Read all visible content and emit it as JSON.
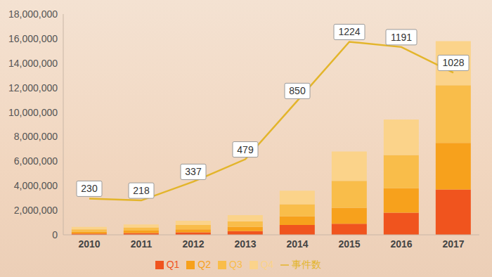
{
  "chart_data": {
    "type": "bar",
    "stacked": true,
    "categories": [
      "2010",
      "2011",
      "2012",
      "2013",
      "2014",
      "2015",
      "2016",
      "2017"
    ],
    "series": [
      {
        "name": "Q1",
        "type": "bar",
        "color": "#f0541e",
        "values": [
          100000,
          150000,
          200000,
          300000,
          800000,
          900000,
          1800000,
          3700000
        ]
      },
      {
        "name": "Q2",
        "type": "bar",
        "color": "#f7a11c",
        "values": [
          150000,
          200000,
          250000,
          350000,
          700000,
          1300000,
          2000000,
          3800000
        ]
      },
      {
        "name": "Q3",
        "type": "bar",
        "color": "#f9bd4a",
        "values": [
          200000,
          250000,
          350000,
          450000,
          1000000,
          2200000,
          2700000,
          4700000
        ]
      },
      {
        "name": "Q4",
        "type": "bar",
        "color": "#fbd38a",
        "values": [
          200000,
          250000,
          350000,
          500000,
          1100000,
          2400000,
          2900000,
          3600000
        ]
      },
      {
        "name": "事件数",
        "type": "line",
        "axis": "y2",
        "color": "#e3b52b",
        "marker": "none",
        "data_labels": true,
        "values": [
          230,
          218,
          337,
          479,
          850,
          1224,
          1191,
          1028
        ]
      }
    ],
    "ylim": [
      0,
      18000000
    ],
    "yticks": [
      0,
      {
        "value": 2000000,
        "label": "2,000,000"
      },
      {
        "value": 4000000,
        "label": "4,000,000"
      },
      {
        "value": 6000000,
        "label": "6,000,000"
      },
      {
        "value": 8000000,
        "label": "8,000,000"
      },
      {
        "value": 10000000,
        "label": "10,000,000"
      },
      {
        "value": 12000000,
        "label": "12,000,000"
      },
      {
        "value": 14000000,
        "label": "14,000,000"
      },
      {
        "value": 16000000,
        "label": "16,000,000"
      },
      {
        "value": 18000000,
        "label": "18,000,000"
      }
    ],
    "y2lim": [
      0,
      1400
    ],
    "y2ticks": [],
    "grid": false,
    "legend": "bottom"
  }
}
